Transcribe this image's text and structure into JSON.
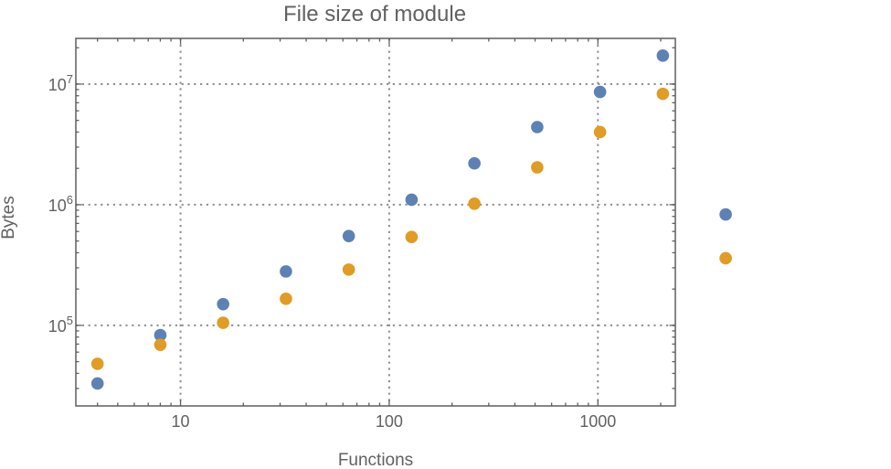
{
  "colors": {
    "background": "#ffffff",
    "frame": "#5e5e5e",
    "tick": "#5e5e5e",
    "grid": "#8f8f8f",
    "text": "#616161",
    "series_blue": "#5e81b5",
    "series_orange": "#e19c24"
  },
  "chart_data": {
    "type": "scatter",
    "title": "File size of module",
    "xlabel": "Functions",
    "ylabel": "Bytes",
    "x_scale": "log",
    "y_scale": "log",
    "x_range": [
      3.15,
      2350
    ],
    "y_range": [
      21500,
      23900000
    ],
    "grid": "major-ticks-dotted",
    "legend": "none",
    "frame_ticks": "all-four-edges-inward",
    "x_ticks": [
      {
        "value": 10,
        "label": "10"
      },
      {
        "value": 100,
        "label": "100"
      },
      {
        "value": 1000,
        "label": "1000"
      }
    ],
    "y_ticks": [
      {
        "value": 100000,
        "base": "10",
        "exp": "5"
      },
      {
        "value": 1000000,
        "base": "10",
        "exp": "6"
      },
      {
        "value": 10000000,
        "base": "10",
        "exp": "7"
      }
    ],
    "x": [
      4,
      8,
      16,
      32,
      64,
      128,
      256,
      512,
      1024,
      2048,
      4096
    ],
    "series": [
      {
        "name": "blue",
        "color": "#5e81b5",
        "values": [
          33000,
          83000,
          150000,
          280000,
          550000,
          1100000,
          2200000,
          4400000,
          8600000,
          17200000,
          830000
        ]
      },
      {
        "name": "orange",
        "color": "#e19c24",
        "values": [
          48000,
          69000,
          105000,
          166000,
          290000,
          540000,
          1020000,
          2040000,
          4000000,
          8300000,
          360000
        ]
      }
    ],
    "note_points_outside_frame": "last x pair (4096) is drawn beyond the right frame edge, unclipped"
  }
}
